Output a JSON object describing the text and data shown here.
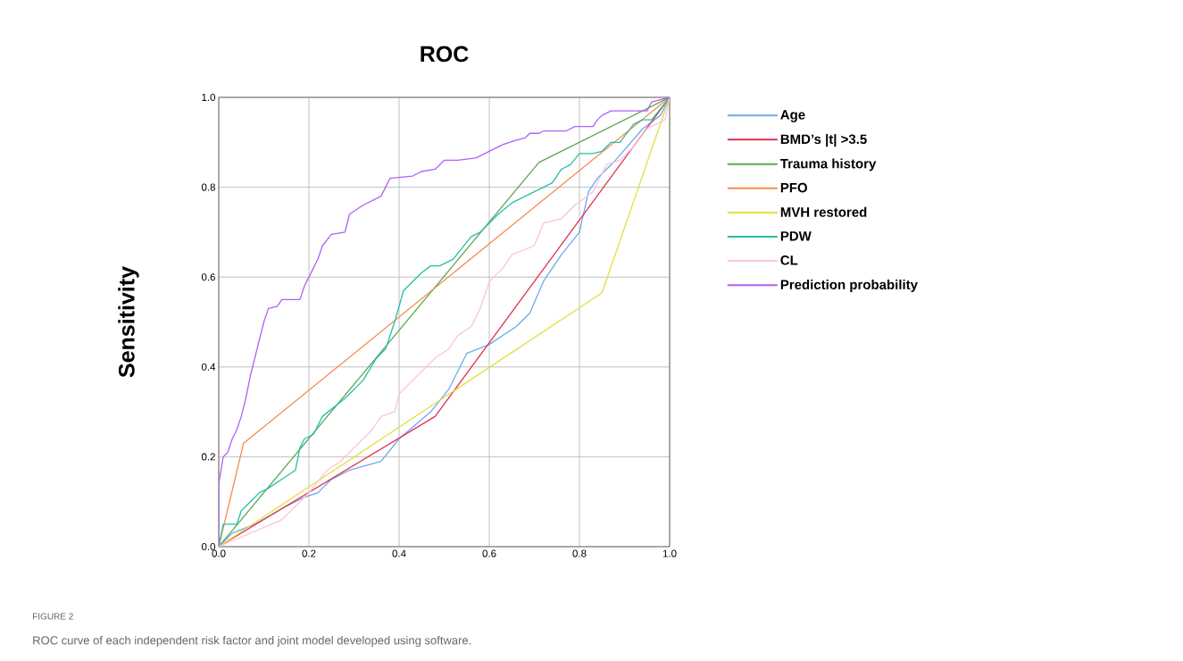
{
  "chart_data": {
    "type": "line",
    "title": "ROC",
    "ylabel": "Sensitivity",
    "xlim": [
      0,
      1
    ],
    "ylim": [
      0,
      1
    ],
    "xticks": [
      {
        "value": 0,
        "label": "0.0"
      },
      {
        "value": 0.2,
        "label": "0.2"
      },
      {
        "value": 0.4,
        "label": "0.4"
      },
      {
        "value": 0.6,
        "label": "0.6"
      },
      {
        "value": 0.8,
        "label": "0.8"
      },
      {
        "value": 1,
        "label": "1.0"
      }
    ],
    "yticks": [
      {
        "value": 0,
        "label": "0.0"
      },
      {
        "value": 0.2,
        "label": "0.2"
      },
      {
        "value": 0.4,
        "label": "0.4"
      },
      {
        "value": 0.6,
        "label": "0.6"
      },
      {
        "value": 0.8,
        "label": "0.8"
      },
      {
        "value": 1,
        "label": "1.0"
      }
    ],
    "grid": true,
    "legend": "right",
    "marker": "none",
    "line_style": "solid",
    "annotations": [
      "FIGURE 2",
      "ROC curve of each independent risk factor and joint model developed using software."
    ],
    "series": [
      {
        "name": "Age",
        "color": "#6fa8f0",
        "x": [
          0,
          0.03,
          0.08,
          0.15,
          0.19,
          0.22,
          0.25,
          0.29,
          0.36,
          0.4,
          0.47,
          0.51,
          0.55,
          0.6,
          0.66,
          0.69,
          0.72,
          0.76,
          0.8,
          0.82,
          0.84,
          0.88,
          0.94,
          0.98,
          1
        ],
        "values": [
          0,
          0.03,
          0.05,
          0.09,
          0.11,
          0.12,
          0.15,
          0.17,
          0.19,
          0.24,
          0.3,
          0.35,
          0.43,
          0.45,
          0.49,
          0.52,
          0.59,
          0.65,
          0.7,
          0.79,
          0.82,
          0.86,
          0.93,
          0.96,
          1
        ]
      },
      {
        "name": "BMD’s |t| >3.5",
        "color": "#e0334f",
        "x": [
          0,
          0.48,
          1
        ],
        "values": [
          0,
          0.29,
          1
        ]
      },
      {
        "name": "Trauma history",
        "color": "#5fa653",
        "x": [
          0,
          0.71,
          1
        ],
        "values": [
          0,
          0.855,
          1
        ]
      },
      {
        "name": "PFO",
        "color": "#f58a4f",
        "x": [
          0,
          0.055,
          1
        ],
        "values": [
          0,
          0.23,
          1
        ]
      },
      {
        "name": "MVH restored",
        "color": "#e4df3c",
        "x": [
          0,
          0.85,
          1
        ],
        "values": [
          0,
          0.565,
          1
        ]
      },
      {
        "name": "PDW",
        "color": "#26bfa6",
        "x": [
          0,
          0.01,
          0.04,
          0.05,
          0.07,
          0.09,
          0.11,
          0.14,
          0.17,
          0.18,
          0.19,
          0.21,
          0.23,
          0.28,
          0.32,
          0.35,
          0.37,
          0.39,
          0.41,
          0.45,
          0.47,
          0.49,
          0.52,
          0.56,
          0.58,
          0.62,
          0.65,
          0.7,
          0.74,
          0.76,
          0.78,
          0.8,
          0.83,
          0.85,
          0.87,
          0.89,
          0.92,
          0.94,
          0.96,
          0.98,
          1
        ],
        "values": [
          0,
          0.05,
          0.05,
          0.08,
          0.1,
          0.12,
          0.13,
          0.15,
          0.17,
          0.22,
          0.24,
          0.25,
          0.29,
          0.33,
          0.37,
          0.42,
          0.44,
          0.5,
          0.57,
          0.61,
          0.625,
          0.625,
          0.64,
          0.69,
          0.7,
          0.74,
          0.765,
          0.79,
          0.81,
          0.84,
          0.85,
          0.875,
          0.875,
          0.88,
          0.9,
          0.9,
          0.94,
          0.95,
          0.95,
          0.975,
          1
        ]
      },
      {
        "name": "CL",
        "color": "#fbc4dc",
        "x": [
          0,
          0.07,
          0.14,
          0.17,
          0.2,
          0.24,
          0.27,
          0.31,
          0.34,
          0.36,
          0.39,
          0.4,
          0.45,
          0.48,
          0.51,
          0.53,
          0.56,
          0.58,
          0.6,
          0.63,
          0.65,
          0.7,
          0.72,
          0.76,
          0.79,
          0.83,
          0.86,
          0.89,
          0.92,
          0.95,
          0.99,
          1
        ],
        "values": [
          0,
          0.03,
          0.06,
          0.09,
          0.12,
          0.17,
          0.19,
          0.23,
          0.26,
          0.29,
          0.3,
          0.34,
          0.39,
          0.42,
          0.44,
          0.47,
          0.49,
          0.53,
          0.59,
          0.62,
          0.65,
          0.67,
          0.72,
          0.73,
          0.76,
          0.79,
          0.85,
          0.86,
          0.89,
          0.93,
          0.95,
          1
        ]
      },
      {
        "name": "Prediction probability",
        "color": "#b061f5",
        "x": [
          0,
          0,
          0.01,
          0.02,
          0.03,
          0.04,
          0.05,
          0.06,
          0.07,
          0.08,
          0.09,
          0.1,
          0.11,
          0.13,
          0.14,
          0.18,
          0.19,
          0.21,
          0.22,
          0.23,
          0.25,
          0.28,
          0.29,
          0.32,
          0.34,
          0.36,
          0.37,
          0.38,
          0.43,
          0.45,
          0.48,
          0.5,
          0.53,
          0.57,
          0.6,
          0.63,
          0.66,
          0.68,
          0.69,
          0.71,
          0.72,
          0.77,
          0.79,
          0.83,
          0.84,
          0.85,
          0.87,
          0.95,
          0.96,
          1
        ],
        "values": [
          0,
          0.14,
          0.2,
          0.21,
          0.24,
          0.26,
          0.29,
          0.33,
          0.38,
          0.42,
          0.46,
          0.5,
          0.53,
          0.535,
          0.55,
          0.55,
          0.58,
          0.62,
          0.64,
          0.67,
          0.695,
          0.7,
          0.74,
          0.76,
          0.77,
          0.78,
          0.8,
          0.82,
          0.825,
          0.835,
          0.84,
          0.86,
          0.86,
          0.865,
          0.88,
          0.895,
          0.905,
          0.91,
          0.92,
          0.92,
          0.925,
          0.925,
          0.935,
          0.935,
          0.95,
          0.96,
          0.97,
          0.97,
          0.99,
          1
        ]
      }
    ]
  }
}
